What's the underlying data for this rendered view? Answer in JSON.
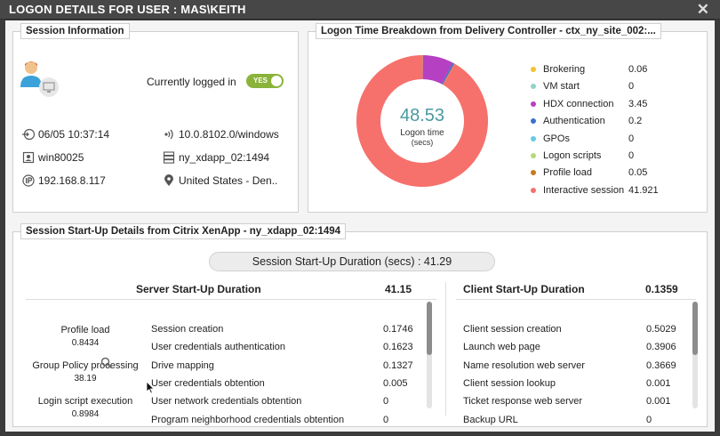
{
  "window": {
    "title": "LOGON DETAILS FOR USER : MAS\\KEITH",
    "close_glyph": "✕"
  },
  "session_info": {
    "title": "Session Information",
    "status_label": "Currently logged in",
    "toggle_label": "YES",
    "logon_time": "06/05 10:37:14",
    "ip_endpoint": "10.0.8102.0/windows",
    "client_name": "win80025",
    "server": "ny_xdapp_02:1494",
    "client_ip": "192.168.8.117",
    "location": "United States - Den.."
  },
  "logon_breakdown": {
    "title": "Logon Time Breakdown from Delivery Controller - ctx_ny_site_002:...",
    "total_value": "48.53",
    "total_label": "Logon time",
    "total_unit": "(secs)",
    "items": [
      {
        "name": "Brokering",
        "value": "0.06",
        "color": "#f2c230"
      },
      {
        "name": "VM start",
        "value": "0",
        "color": "#8fd3c8"
      },
      {
        "name": "HDX connection",
        "value": "3.45",
        "color": "#b640c2"
      },
      {
        "name": "Authentication",
        "value": "0.2",
        "color": "#3d6fd1"
      },
      {
        "name": "GPOs",
        "value": "0",
        "color": "#68c8e6"
      },
      {
        "name": "Logon scripts",
        "value": "0",
        "color": "#b7d87a"
      },
      {
        "name": "Profile load",
        "value": "0.05",
        "color": "#c77a1c"
      },
      {
        "name": "Interactive session",
        "value": "41.921",
        "color": "#f6716c"
      }
    ]
  },
  "startup": {
    "title": "Session Start-Up Details from Citrix XenApp - ny_xdapp_02:1494",
    "duration_label": "Session Start-Up Duration (secs) :",
    "duration_value": "41.29",
    "metrics": [
      {
        "name": "Profile load",
        "value": "0.8434"
      },
      {
        "name": "Group Policy processing",
        "value": "38.19"
      },
      {
        "name": "Login script execution",
        "value": "0.8984"
      }
    ],
    "server": {
      "heading": "Server Start-Up Duration",
      "total": "41.15",
      "rows": [
        {
          "name": "Session creation",
          "value": "0.1746"
        },
        {
          "name": "User credentials authentication",
          "value": "0.1623"
        },
        {
          "name": "Drive mapping",
          "value": "0.1327"
        },
        {
          "name": "User credentials obtention",
          "value": "0.005"
        },
        {
          "name": "User network credentials obtention",
          "value": "0"
        },
        {
          "name": "Program neighborhood credentials obtention",
          "value": "0"
        }
      ]
    },
    "client": {
      "heading": "Client Start-Up Duration",
      "total": "0.1359",
      "rows": [
        {
          "name": "Client session creation",
          "value": "0.5029"
        },
        {
          "name": "Launch web page",
          "value": "0.3906"
        },
        {
          "name": "Name resolution web server",
          "value": "0.3669"
        },
        {
          "name": "Client session lookup",
          "value": "0.001"
        },
        {
          "name": "Ticket response web server",
          "value": "0.001"
        },
        {
          "name": "Backup URL",
          "value": "0"
        }
      ]
    }
  }
}
